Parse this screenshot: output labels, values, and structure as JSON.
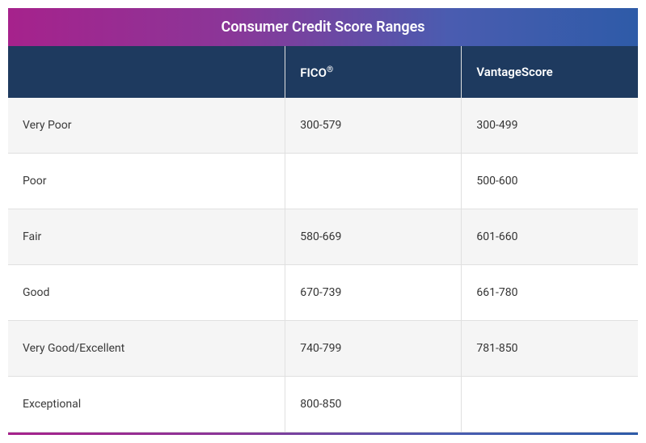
{
  "table": {
    "title": "Consumer Credit Score Ranges",
    "columns": {
      "category": "",
      "fico": "FICO",
      "fico_mark": "®",
      "vantage": "VantageScore"
    },
    "rows": [
      {
        "category": "Very Poor",
        "fico": "300-579",
        "vantage": "300-499"
      },
      {
        "category": "Poor",
        "fico": "",
        "vantage": "500-600"
      },
      {
        "category": "Fair",
        "fico": "580-669",
        "vantage": "601-660"
      },
      {
        "category": "Good",
        "fico": "670-739",
        "vantage": "661-780"
      },
      {
        "category": "Very Good/Excellent",
        "fico": "740-799",
        "vantage": "781-850"
      },
      {
        "category": "Exceptional",
        "fico": "800-850",
        "vantage": ""
      }
    ],
    "styling": {
      "title_gradient_start": "#a6228c",
      "title_gradient_end": "#2e5ba8",
      "header_bg": "#1e3a5f",
      "header_text_color": "#ffffff",
      "row_odd_bg": "#f5f5f5",
      "row_even_bg": "#ffffff",
      "border_color": "#e0e0e0",
      "text_color": "#333333",
      "title_fontsize": 18,
      "header_fontsize": 15,
      "cell_fontsize": 14,
      "col_widths_pct": [
        44,
        28,
        28
      ]
    }
  }
}
